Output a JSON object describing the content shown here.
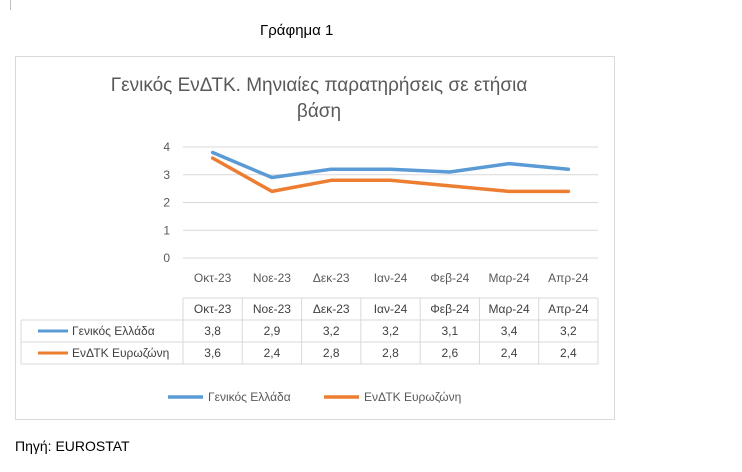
{
  "caption": "Γράφημα 1",
  "source": "Πηγή: EUROSTAT",
  "chart_data": {
    "type": "line",
    "title": "Γενικός ΕνΔΤΚ.  Μηνιαίες παρατηρήσεις σε ετήσια βάση",
    "categories": [
      "Οκτ-23",
      "Νοε-23",
      "Δεκ-23",
      "Ιαν-24",
      "Φεβ-24",
      "Μαρ-24",
      "Απρ-24"
    ],
    "series": [
      {
        "name": "Γενικός Ελλάδα",
        "color": "#5b9bd5",
        "values": [
          3.8,
          2.9,
          3.2,
          3.2,
          3.1,
          3.4,
          3.2
        ],
        "value_labels": [
          "3,8",
          "2,9",
          "3,2",
          "3,2",
          "3,1",
          "3,4",
          "3,2"
        ]
      },
      {
        "name": "ΕνΔΤΚ Ευρωζώνη",
        "color": "#ed7d31",
        "values": [
          3.6,
          2.4,
          2.8,
          2.8,
          2.6,
          2.4,
          2.4
        ],
        "value_labels": [
          "3,6",
          "2,4",
          "2,8",
          "2,8",
          "2,6",
          "2,4",
          "2,4"
        ]
      }
    ],
    "yticks": [
      0,
      1,
      2,
      3,
      4
    ],
    "ylim": [
      0,
      4
    ],
    "grid": true,
    "data_table": true,
    "legend": "bottom"
  }
}
